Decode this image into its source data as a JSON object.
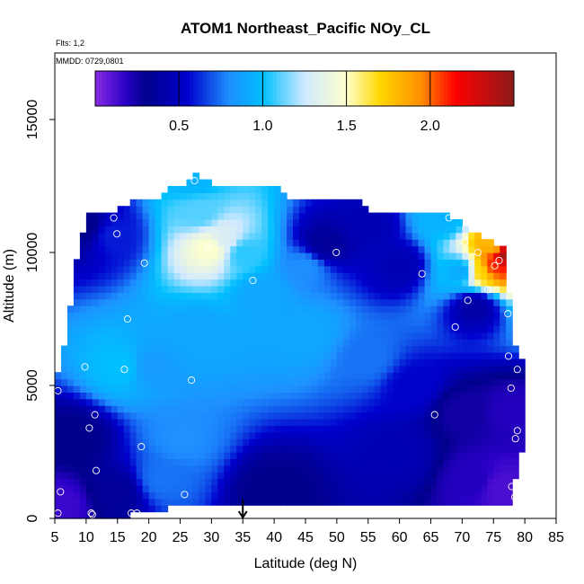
{
  "chart_data": {
    "type": "heatmap",
    "title": "ATOM1 Northeast_Pacific NOy_CL",
    "flights_note": "Flts: 1,2",
    "dates_note": "MMDD: 0729,0801",
    "xlabel": "Latitude (deg N)",
    "ylabel": "Altitude (m)",
    "xlim": [
      5,
      85
    ],
    "ylim": [
      0,
      17500
    ],
    "x_ticks": [
      "5",
      "10",
      "15",
      "20",
      "25",
      "30",
      "35",
      "40",
      "45",
      "50",
      "55",
      "60",
      "65",
      "70",
      "75",
      "80",
      "85"
    ],
    "y_ticks": [
      "0",
      "5000",
      "10000",
      "15000"
    ],
    "colorbar": {
      "range": [
        0,
        2.5
      ],
      "ticks": [
        "0.5",
        "1.0",
        "1.5",
        "2.0"
      ],
      "tick_values": [
        0.5,
        1.0,
        1.5,
        2.0
      ],
      "stops": [
        {
          "v": 0.0,
          "color": "#8a2be2"
        },
        {
          "v": 0.18,
          "color": "#2a00c8"
        },
        {
          "v": 0.3,
          "color": "#00008b"
        },
        {
          "v": 0.55,
          "color": "#0000cd"
        },
        {
          "v": 0.8,
          "color": "#1e90ff"
        },
        {
          "v": 1.0,
          "color": "#00bfff"
        },
        {
          "v": 1.25,
          "color": "#cfe9ff"
        },
        {
          "v": 1.5,
          "color": "#ffffcc"
        },
        {
          "v": 1.7,
          "color": "#ffd700"
        },
        {
          "v": 1.95,
          "color": "#ff8c00"
        },
        {
          "v": 2.15,
          "color": "#ff0000"
        },
        {
          "v": 2.5,
          "color": "#8b1a1a"
        }
      ]
    },
    "profile_extent": [
      {
        "lat": 5,
        "bottom": 0,
        "top": 5000
      },
      {
        "lat": 7,
        "bottom": 0,
        "top": 7000
      },
      {
        "lat": 8,
        "bottom": 0,
        "top": 9000
      },
      {
        "lat": 10,
        "bottom": 0,
        "top": 11300
      },
      {
        "lat": 15,
        "bottom": 0,
        "top": 11500
      },
      {
        "lat": 18,
        "bottom": 300,
        "top": 12000
      },
      {
        "lat": 22,
        "bottom": 300,
        "top": 12000
      },
      {
        "lat": 23,
        "bottom": 500,
        "top": 12500
      },
      {
        "lat": 26,
        "bottom": 500,
        "top": 12500
      },
      {
        "lat": 27,
        "bottom": 500,
        "top": 13000
      },
      {
        "lat": 30,
        "bottom": 500,
        "top": 12500
      },
      {
        "lat": 41,
        "bottom": 500,
        "top": 12500
      },
      {
        "lat": 42,
        "bottom": 500,
        "top": 12000
      },
      {
        "lat": 54,
        "bottom": 500,
        "top": 12000
      },
      {
        "lat": 55,
        "bottom": 500,
        "top": 11500
      },
      {
        "lat": 66,
        "bottom": 500,
        "top": 11500
      },
      {
        "lat": 70,
        "bottom": 500,
        "top": 11000
      },
      {
        "lat": 73,
        "bottom": 500,
        "top": 10500
      },
      {
        "lat": 77,
        "bottom": 500,
        "top": 10000
      },
      {
        "lat": 78,
        "bottom": 500,
        "top": 7000
      },
      {
        "lat": 79,
        "bottom": 2500,
        "top": 6000
      },
      {
        "lat": 80,
        "bottom": 2500,
        "top": 6000
      }
    ],
    "value_anchors": [
      {
        "lat": 6,
        "alt": 500,
        "v": 0.15
      },
      {
        "lat": 8,
        "alt": 3000,
        "v": 0.3
      },
      {
        "lat": 10,
        "alt": 11000,
        "v": 0.3
      },
      {
        "lat": 14,
        "alt": 10700,
        "v": 0.6
      },
      {
        "lat": 16,
        "alt": 5700,
        "v": 1.0
      },
      {
        "lat": 20,
        "alt": 5700,
        "v": 0.85
      },
      {
        "lat": 25,
        "alt": 3000,
        "v": 0.8
      },
      {
        "lat": 22,
        "alt": 1500,
        "v": 0.75
      },
      {
        "lat": 28,
        "alt": 7000,
        "v": 0.9
      },
      {
        "lat": 30,
        "alt": 10200,
        "v": 1.5
      },
      {
        "lat": 32,
        "alt": 10500,
        "v": 1.3
      },
      {
        "lat": 28,
        "alt": 11500,
        "v": 1.1
      },
      {
        "lat": 27,
        "alt": 12800,
        "v": 0.95
      },
      {
        "lat": 35,
        "alt": 10000,
        "v": 1.05
      },
      {
        "lat": 38,
        "alt": 8500,
        "v": 0.9
      },
      {
        "lat": 45,
        "alt": 7000,
        "v": 0.9
      },
      {
        "lat": 45,
        "alt": 9500,
        "v": 0.8
      },
      {
        "lat": 48,
        "alt": 10300,
        "v": 0.35
      },
      {
        "lat": 55,
        "alt": 11000,
        "v": 0.45
      },
      {
        "lat": 60,
        "alt": 9500,
        "v": 0.45
      },
      {
        "lat": 62,
        "alt": 5000,
        "v": 0.55
      },
      {
        "lat": 60,
        "alt": 2500,
        "v": 0.45
      },
      {
        "lat": 70,
        "alt": 4000,
        "v": 0.25
      },
      {
        "lat": 72,
        "alt": 1500,
        "v": 0.2
      },
      {
        "lat": 76,
        "alt": 1200,
        "v": 0.12
      },
      {
        "lat": 78,
        "alt": 4000,
        "v": 0.2
      },
      {
        "lat": 72,
        "alt": 8000,
        "v": 0.4
      },
      {
        "lat": 70,
        "alt": 9300,
        "v": 0.9
      },
      {
        "lat": 73,
        "alt": 9300,
        "v": 1.7
      },
      {
        "lat": 75,
        "alt": 9500,
        "v": 2.1
      },
      {
        "lat": 77,
        "alt": 9900,
        "v": 2.45
      },
      {
        "lat": 75,
        "alt": 10300,
        "v": 1.8
      },
      {
        "lat": 67,
        "alt": 11300,
        "v": 0.95
      },
      {
        "lat": 40,
        "alt": 1000,
        "v": 0.3
      },
      {
        "lat": 15,
        "alt": 1000,
        "v": 0.35
      },
      {
        "lat": 55,
        "alt": 6000,
        "v": 0.75
      }
    ],
    "sample_points": [
      {
        "lat": 8.3,
        "alt": 11300
      },
      {
        "lat": 14.4,
        "alt": 11300
      },
      {
        "lat": 14.9,
        "alt": 10700
      },
      {
        "lat": 19.3,
        "alt": 9600
      },
      {
        "lat": 27.3,
        "alt": 12700
      },
      {
        "lat": 29.5,
        "alt": 10200
      },
      {
        "lat": 36.6,
        "alt": 8950
      },
      {
        "lat": 49.9,
        "alt": 10000
      },
      {
        "lat": 63.6,
        "alt": 9200
      },
      {
        "lat": 67.9,
        "alt": 11300
      },
      {
        "lat": 70.4,
        "alt": 10400
      },
      {
        "lat": 72.5,
        "alt": 10000
      },
      {
        "lat": 74.1,
        "alt": 8600
      },
      {
        "lat": 75.2,
        "alt": 9500
      },
      {
        "lat": 75.9,
        "alt": 9700
      },
      {
        "lat": 70.9,
        "alt": 8200
      },
      {
        "lat": 68.9,
        "alt": 7200
      },
      {
        "lat": 77.3,
        "alt": 7700
      },
      {
        "lat": 77.4,
        "alt": 6100
      },
      {
        "lat": 78.8,
        "alt": 5600
      },
      {
        "lat": 77.8,
        "alt": 4900
      },
      {
        "lat": 65.6,
        "alt": 3900
      },
      {
        "lat": 78.8,
        "alt": 3300
      },
      {
        "lat": 78.5,
        "alt": 3000
      },
      {
        "lat": 77.9,
        "alt": 1200
      },
      {
        "lat": 78.4,
        "alt": 800
      },
      {
        "lat": 16.6,
        "alt": 7500
      },
      {
        "lat": 9.8,
        "alt": 5700
      },
      {
        "lat": 16.1,
        "alt": 5600
      },
      {
        "lat": 26.8,
        "alt": 5200
      },
      {
        "lat": 5.5,
        "alt": 4800
      },
      {
        "lat": 11.4,
        "alt": 3900
      },
      {
        "lat": 10.5,
        "alt": 3400
      },
      {
        "lat": 18.8,
        "alt": 2700
      },
      {
        "lat": 11.6,
        "alt": 1800
      },
      {
        "lat": 25.7,
        "alt": 900
      },
      {
        "lat": 5.9,
        "alt": 1000
      },
      {
        "lat": 5.5,
        "alt": 200
      },
      {
        "lat": 10.8,
        "alt": 200
      },
      {
        "lat": 11.0,
        "alt": 150
      },
      {
        "lat": 17.2,
        "alt": 200
      },
      {
        "lat": 18.1,
        "alt": 200
      }
    ],
    "marker_lat": 35
  }
}
